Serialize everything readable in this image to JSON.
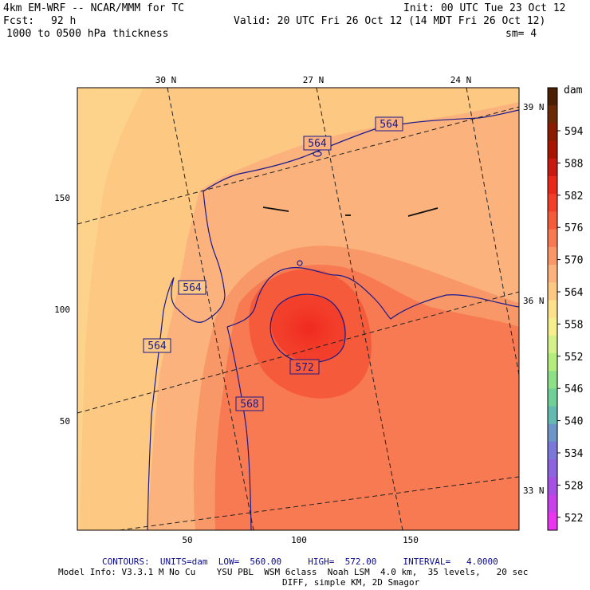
{
  "header": {
    "model": "4km EM-WRF -- NCAR/MMM for TC",
    "init": "Init: 00 UTC Tue 23 Oct 12",
    "fcst_label": "Fcst:",
    "fcst_value": "92 h",
    "valid": "Valid: 20 UTC Fri 26 Oct 12 (14 MDT Fri 26 Oct 12)",
    "field": "1000 to 0500 hPa thickness",
    "smoothing": "sm= 4"
  },
  "map": {
    "lat_labels_top": [
      "30 N",
      "27 N",
      "24 N"
    ],
    "lat_labels_right": [
      "39 N",
      "36 N",
      "33 N"
    ],
    "x_ticks": [
      "50",
      "100",
      "150"
    ],
    "y_ticks": [
      "150",
      "100",
      "50"
    ],
    "contour_labels": [
      "564",
      "564",
      "564",
      "564",
      "572",
      "568"
    ]
  },
  "colorbar": {
    "unit": "dam",
    "ticks": [
      "594",
      "588",
      "582",
      "576",
      "570",
      "564",
      "558",
      "552",
      "546",
      "540",
      "534",
      "528",
      "522"
    ],
    "colors": [
      "#4a2000",
      "#6b2a05",
      "#8a1a00",
      "#a81400",
      "#c81a10",
      "#e8281a",
      "#f23d2a",
      "#f55a3a",
      "#f77a52",
      "#f89868",
      "#fbb27c",
      "#fcc882",
      "#fde08a",
      "#f7ef8e",
      "#d7f18a",
      "#b4ec7e",
      "#8ee087",
      "#6fcf96",
      "#64b9b0",
      "#6e95c8",
      "#7a78d8",
      "#8d63e0",
      "#a64fe5",
      "#c840ea",
      "#ea35f0"
    ]
  },
  "footer": {
    "contours": "CONTOURS:  UNITS=dam  LOW=  560.00     HIGH=  572.00     INTERVAL=   4.0000",
    "model_info": "Model Info: V3.3.1 M No Cu    YSU PBL  WSM 6class  Noah LSM  4.0 km,  35 levels,   20 sec",
    "diff": "DIFF, simple KM, 2D Smagor"
  }
}
